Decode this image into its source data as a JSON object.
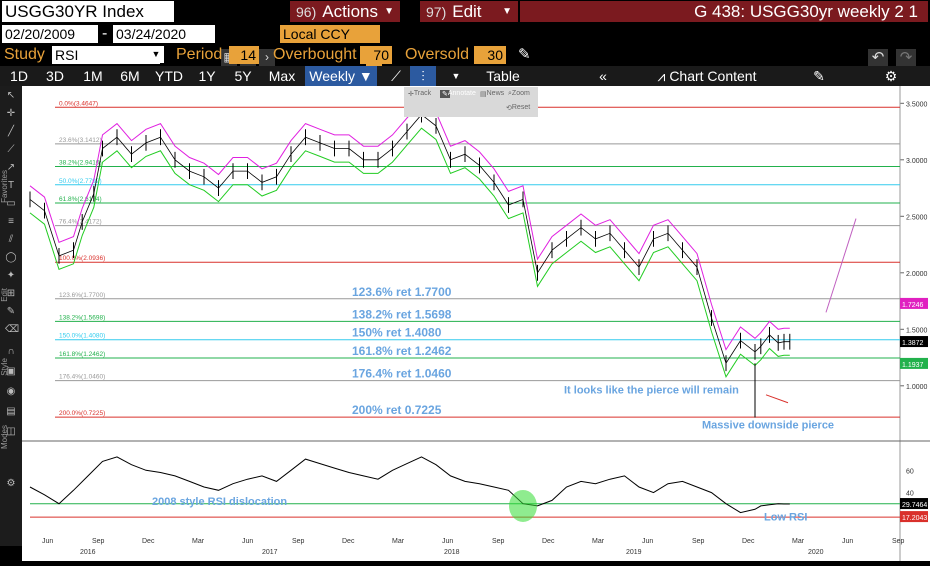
{
  "header": {
    "ticker": "USGG30YR Index",
    "actions": {
      "num": "96)",
      "label": "Actions"
    },
    "edit": {
      "num": "97)",
      "label": "Edit"
    },
    "title": "G 438: USGG30yr weekly 2 1"
  },
  "params": {
    "start_date": "02/20/2009",
    "end_date": "03/24/2020",
    "currency": "Local CCY",
    "study_label": "Study",
    "study": "RSI",
    "period_label": "Period",
    "period": "14",
    "overbought_label": "Overbought",
    "overbought": "70",
    "oversold_label": "Oversold",
    "oversold": "30"
  },
  "toolbar": {
    "ranges": [
      "1D",
      "3D",
      "1M",
      "6M",
      "YTD",
      "1Y",
      "5Y",
      "Max"
    ],
    "frequency": "Weekly",
    "table": "Table",
    "chart_content": "Chart Content"
  },
  "zoom_panel": {
    "track": "Track",
    "annotate": "Annotate",
    "news": "News",
    "zoom": "Zoom",
    "reset": "Reset"
  },
  "left_tabs": [
    "Favorites",
    "Edit",
    "Style",
    "Modes"
  ],
  "chart_data": [
    {
      "type": "line",
      "subtype": "ohlc-bars-with-bands",
      "x_axis": {
        "months": [
          "Jun",
          "Sep",
          "Dec",
          "Mar",
          "Jun",
          "Sep",
          "Dec",
          "Mar",
          "Jun",
          "Sep",
          "Dec",
          "Mar",
          "Jun",
          "Sep",
          "Dec",
          "Mar",
          "Jun",
          "Sep"
        ],
        "years": [
          "2016",
          "2017",
          "2018",
          "2019",
          "2020"
        ]
      },
      "y_axis": {
        "ticks": [
          3.5,
          3.0,
          2.5,
          2.0,
          1.5,
          1.0
        ],
        "tick_labels": [
          "3.5000",
          "3.0000",
          "2.5000",
          "2.0000",
          "1.5000",
          "1.0000"
        ],
        "ylim": [
          0.6,
          3.6
        ]
      },
      "price_series": {
        "name": "USGG30YR",
        "x": [
          0,
          5,
          10,
          15,
          18,
          22,
          25,
          30,
          35,
          40,
          45,
          50,
          55,
          60,
          65,
          70,
          75,
          80,
          85,
          90,
          95,
          100,
          105,
          110,
          115,
          120,
          125,
          130,
          135,
          140,
          145,
          150,
          155,
          160,
          165,
          170,
          175,
          180,
          185,
          190,
          195,
          200,
          205,
          210,
          215,
          220,
          225,
          230,
          235,
          240,
          245,
          250,
          252,
          255,
          258,
          260,
          262
        ],
        "y": [
          2.65,
          2.55,
          2.15,
          2.2,
          2.45,
          2.7,
          3.1,
          3.2,
          3.05,
          3.15,
          3.2,
          3.0,
          2.9,
          2.85,
          2.75,
          2.9,
          2.9,
          2.8,
          2.85,
          3.05,
          3.2,
          3.15,
          3.1,
          3.1,
          3.0,
          3.0,
          3.1,
          3.25,
          3.4,
          3.3,
          3.0,
          3.05,
          2.95,
          2.8,
          2.6,
          2.65,
          2.0,
          2.2,
          2.3,
          2.4,
          2.3,
          2.35,
          2.2,
          2.05,
          2.3,
          2.35,
          2.2,
          2.05,
          1.6,
          1.2,
          1.4,
          1.3,
          1.35,
          1.45,
          1.38,
          1.39,
          1.39
        ]
      },
      "fibonacci_levels": [
        {
          "label": "0.0%(3.4647)",
          "value": 3.4647,
          "color": "#d9302b"
        },
        {
          "label": "23.6%(3.1412)",
          "value": 3.1412,
          "color": "#999999"
        },
        {
          "label": "38.2%(2.9410)",
          "value": 2.941,
          "color": "#22b14c"
        },
        {
          "label": "50.0%(2.7792)",
          "value": 2.7792,
          "color": "#33ccee"
        },
        {
          "label": "61.8%(2.6174)",
          "value": 2.6174,
          "color": "#22b14c"
        },
        {
          "label": "76.4%(2.4172)",
          "value": 2.4172,
          "color": "#999999"
        },
        {
          "label": "100.0%(2.0936)",
          "value": 2.0936,
          "color": "#d9302b"
        },
        {
          "label": "123.6%(1.7700)",
          "value": 1.77,
          "color": "#999999"
        },
        {
          "label": "138.2%(1.5698)",
          "value": 1.5698,
          "color": "#22b14c"
        },
        {
          "label": "150.0%(1.4080)",
          "value": 1.408,
          "color": "#33ccee"
        },
        {
          "label": "161.8%(1.2462)",
          "value": 1.2462,
          "color": "#22b14c"
        },
        {
          "label": "176.4%(1.0460)",
          "value": 1.046,
          "color": "#999999"
        },
        {
          "label": "200.0%(0.7225)",
          "value": 0.7225,
          "color": "#d9302b"
        }
      ],
      "annotations": [
        {
          "text": "123.6% ret 1.7700",
          "value": 1.77
        },
        {
          "text": "138.2% ret 1.5698",
          "value": 1.5698
        },
        {
          "text": "150% ret 1.4080",
          "value": 1.408
        },
        {
          "text": "161.8% ret 1.2462",
          "value": 1.2462
        },
        {
          "text": "176.4% ret 1.0460",
          "value": 1.046
        },
        {
          "text": "200% ret 0.7225",
          "value": 0.7225
        },
        {
          "text": "It looks like the pierce will remain"
        },
        {
          "text": "Massive downside pierce"
        }
      ],
      "right_badges": [
        {
          "text": "1.7246",
          "color": "#e020c0"
        },
        {
          "text": "1.3872",
          "color": "#000000"
        },
        {
          "text": "1.1937",
          "color": "#22b14c"
        }
      ],
      "band_colors": {
        "upper": "#e020e0",
        "lower": "#22cc22",
        "bars": "#000000"
      }
    },
    {
      "type": "line",
      "title": "RSI",
      "y_axis": {
        "ticks": [
          60,
          40
        ],
        "ylim": [
          10,
          80
        ]
      },
      "overbought": 70,
      "oversold": 30,
      "series": {
        "name": "RSI",
        "x": [
          0,
          5,
          10,
          15,
          20,
          25,
          30,
          35,
          40,
          45,
          50,
          55,
          60,
          65,
          70,
          75,
          80,
          85,
          90,
          95,
          100,
          105,
          110,
          115,
          120,
          125,
          130,
          135,
          140,
          145,
          150,
          155,
          160,
          165,
          170,
          175,
          180,
          185,
          190,
          195,
          200,
          205,
          210,
          215,
          220,
          225,
          230,
          235,
          240,
          245,
          250,
          252,
          255,
          258,
          260,
          262
        ],
        "y": [
          45,
          38,
          30,
          42,
          55,
          68,
          72,
          65,
          60,
          58,
          55,
          50,
          45,
          42,
          48,
          52,
          55,
          50,
          60,
          70,
          66,
          62,
          58,
          55,
          52,
          60,
          66,
          72,
          65,
          55,
          50,
          48,
          45,
          42,
          30,
          28,
          33,
          45,
          50,
          48,
          52,
          55,
          45,
          40,
          48,
          50,
          45,
          40,
          30,
          22,
          25,
          28,
          29,
          30,
          29.7,
          29.7
        ]
      },
      "annotations": [
        {
          "text": "2008 style RSI dislocation"
        },
        {
          "text": "Low RSI"
        }
      ],
      "right_badges": [
        {
          "text": "29.7464",
          "color": "#000000"
        },
        {
          "text": "17.2043",
          "color": "#d9302b"
        }
      ]
    }
  ]
}
